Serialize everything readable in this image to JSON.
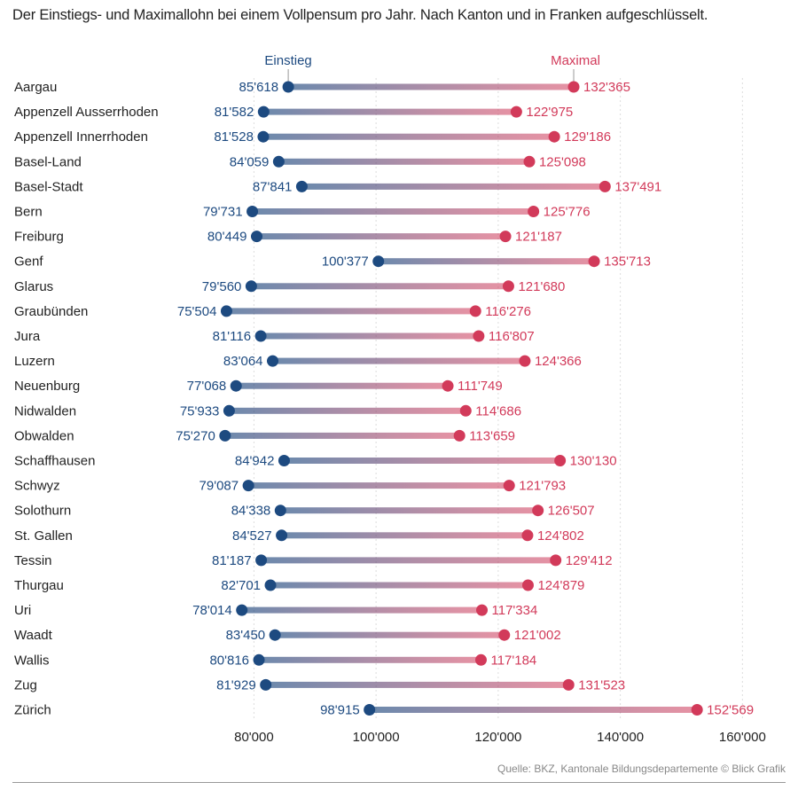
{
  "chart_data": {
    "type": "dumbbell",
    "title": "Der Einstiegs- und Maximallohn bei einem Vollpensum pro Jahr. Nach Kanton und in Franken aufgeschlüsselt.",
    "legend": {
      "start": "Einstieg",
      "end": "Maximal"
    },
    "xlim": [
      66000,
      163000
    ],
    "xticks": [
      80000,
      100000,
      120000,
      140000,
      160000
    ],
    "xtick_labels": [
      "80'000",
      "100'000",
      "120'000",
      "140'000",
      "160'000"
    ],
    "rows": [
      {
        "label": "Aargau",
        "start": 85618,
        "end": 132365,
        "start_label": "85'618",
        "end_label": "132'365"
      },
      {
        "label": "Appenzell Ausserrhoden",
        "start": 81582,
        "end": 122975,
        "start_label": "81'582",
        "end_label": "122'975"
      },
      {
        "label": "Appenzell Innerrhoden",
        "start": 81528,
        "end": 129186,
        "start_label": "81'528",
        "end_label": "129'186"
      },
      {
        "label": "Basel-Land",
        "start": 84059,
        "end": 125098,
        "start_label": "84'059",
        "end_label": "125'098"
      },
      {
        "label": "Basel-Stadt",
        "start": 87841,
        "end": 137491,
        "start_label": "87'841",
        "end_label": "137'491"
      },
      {
        "label": "Bern",
        "start": 79731,
        "end": 125776,
        "start_label": "79'731",
        "end_label": "125'776"
      },
      {
        "label": "Freiburg",
        "start": 80449,
        "end": 121187,
        "start_label": "80'449",
        "end_label": "121'187"
      },
      {
        "label": "Genf",
        "start": 100377,
        "end": 135713,
        "start_label": "100'377",
        "end_label": "135'713"
      },
      {
        "label": "Glarus",
        "start": 79560,
        "end": 121680,
        "start_label": "79'560",
        "end_label": "121'680"
      },
      {
        "label": "Graubünden",
        "start": 75504,
        "end": 116276,
        "start_label": "75'504",
        "end_label": "116'276"
      },
      {
        "label": "Jura",
        "start": 81116,
        "end": 116807,
        "start_label": "81'116",
        "end_label": "116'807"
      },
      {
        "label": "Luzern",
        "start": 83064,
        "end": 124366,
        "start_label": "83'064",
        "end_label": "124'366"
      },
      {
        "label": "Neuenburg",
        "start": 77068,
        "end": 111749,
        "start_label": "77'068",
        "end_label": "111'749"
      },
      {
        "label": "Nidwalden",
        "start": 75933,
        "end": 114686,
        "start_label": "75'933",
        "end_label": "114'686"
      },
      {
        "label": "Obwalden",
        "start": 75270,
        "end": 113659,
        "start_label": "75'270",
        "end_label": "113'659"
      },
      {
        "label": "Schaffhausen",
        "start": 84942,
        "end": 130130,
        "start_label": "84'942",
        "end_label": "130'130"
      },
      {
        "label": "Schwyz",
        "start": 79087,
        "end": 121793,
        "start_label": "79'087",
        "end_label": "121'793"
      },
      {
        "label": "Solothurn",
        "start": 84338,
        "end": 126507,
        "start_label": "84'338",
        "end_label": "126'507"
      },
      {
        "label": "St. Gallen",
        "start": 84527,
        "end": 124802,
        "start_label": "84'527",
        "end_label": "124'802"
      },
      {
        "label": "Tessin",
        "start": 81187,
        "end": 129412,
        "start_label": "81'187",
        "end_label": "129'412"
      },
      {
        "label": "Thurgau",
        "start": 82701,
        "end": 124879,
        "start_label": "82'701",
        "end_label": "124'879"
      },
      {
        "label": "Uri",
        "start": 78014,
        "end": 117334,
        "start_label": "78'014",
        "end_label": "117'334"
      },
      {
        "label": "Waadt",
        "start": 83450,
        "end": 121002,
        "start_label": "83'450",
        "end_label": "121'002"
      },
      {
        "label": "Wallis",
        "start": 80816,
        "end": 117184,
        "start_label": "80'816",
        "end_label": "117'184"
      },
      {
        "label": "Zug",
        "start": 81929,
        "end": 131523,
        "start_label": "81'929",
        "end_label": "131'523"
      },
      {
        "label": "Zürich",
        "start": 98915,
        "end": 152569,
        "start_label": "98'915",
        "end_label": "152'569"
      }
    ]
  },
  "colors": {
    "start": "#1d4a80",
    "end": "#d23a5a",
    "grid": "#dddddd",
    "legend_line": "#999999"
  },
  "footer": {
    "source": "Quelle: BKZ, Kantonale Bildungsdepartemente © Blick Grafik"
  }
}
